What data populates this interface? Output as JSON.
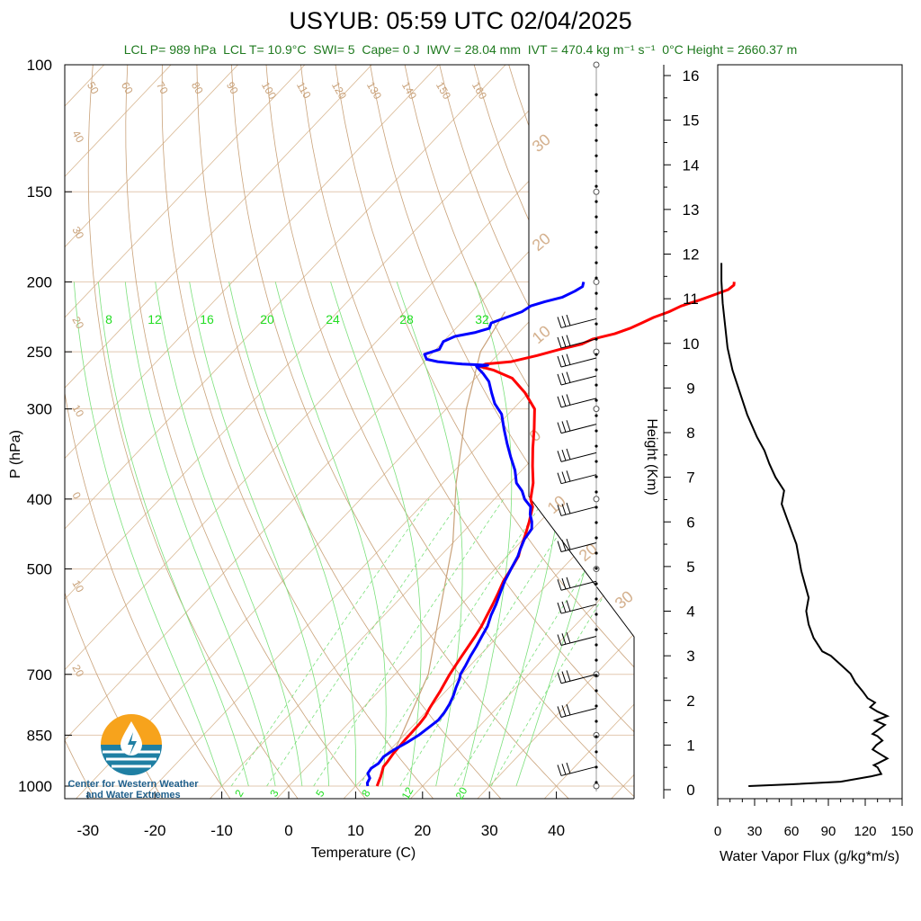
{
  "title": "USYUB: 05:59 UTC 02/04/2025",
  "subtitle": "LCL P= 989 hPa  LCL T= 10.9°C  SWI= 5  Cape= 0 J  IWV = 28.04 mm  IVT = 470.4 kg m⁻¹ s⁻¹  0°C Height = 2660.37 m",
  "logo": {
    "text_line1": "Center for Western Weather",
    "text_line2": "and Water Extremes"
  },
  "colors": {
    "temperature": "#ff0000",
    "dewpoint": "#0000ff",
    "dry_adiabat": "#c9a27a",
    "moist_adiabat": "#7be07b",
    "mixing_ratio": "#7be07b",
    "flux": "#000000"
  },
  "chart_data": [
    {
      "type": "line",
      "name": "skew-t",
      "xlabel": "Temperature (C)",
      "ylabel": "P (hPa)",
      "x_ticks": [
        -30,
        -20,
        -10,
        0,
        10,
        20,
        30,
        40
      ],
      "y_ticks": [
        100,
        150,
        200,
        250,
        300,
        400,
        500,
        700,
        850,
        1000
      ],
      "ylim": [
        1000,
        100
      ],
      "y_scale": "log",
      "dry_adiabat_labels": [
        "50",
        "60",
        "70",
        "80",
        "90",
        "100",
        "110",
        "120",
        "130",
        "140",
        "150",
        "160"
      ],
      "isotherm_labels": [
        "40",
        "30",
        "20",
        "10",
        "0",
        "10",
        "20"
      ],
      "isotherm_labels_right": [
        "30",
        "20",
        "10",
        "0",
        "10",
        "20",
        "30"
      ],
      "moist_labels_upper": [
        "8",
        "12",
        "16",
        "20",
        "24",
        "28",
        "32"
      ],
      "mixing_labels": [
        "2",
        "3",
        "5",
        "8",
        "12",
        "20"
      ],
      "series": [
        {
          "key": "temperature",
          "points": [
            [
              13.2,
              1000
            ],
            [
              12.8,
              985
            ],
            [
              12.4,
              970
            ],
            [
              11.9,
              955
            ],
            [
              11.4,
              940
            ],
            [
              11.3,
              925
            ],
            [
              11.0,
              900
            ],
            [
              10.9,
              880
            ],
            [
              10.8,
              860
            ],
            [
              10.8,
              850
            ],
            [
              10.7,
              820
            ],
            [
              10.5,
              800
            ],
            [
              10.0,
              780
            ],
            [
              9.6,
              760
            ],
            [
              9.2,
              740
            ],
            [
              8.7,
              720
            ],
            [
              8.2,
              700
            ],
            [
              7.8,
              680
            ],
            [
              7.4,
              660
            ],
            [
              7.0,
              640
            ],
            [
              6.6,
              620
            ],
            [
              6.1,
              600
            ],
            [
              5.4,
              580
            ],
            [
              4.7,
              560
            ],
            [
              3.9,
              540
            ],
            [
              3.0,
              520
            ],
            [
              2.4,
              500
            ],
            [
              1.7,
              480
            ],
            [
              1.0,
              470
            ],
            [
              -0.2,
              450
            ],
            [
              -1.6,
              430
            ],
            [
              -3.2,
              410
            ],
            [
              -4.6,
              400
            ],
            [
              -6.5,
              380
            ],
            [
              -9.0,
              360
            ],
            [
              -11.5,
              340
            ],
            [
              -14.0,
              320
            ],
            [
              -16.8,
              300
            ],
            [
              -20.5,
              285
            ],
            [
              -24.5,
              272
            ],
            [
              -28.5,
              265
            ],
            [
              -31.0,
              262
            ],
            [
              -30.5,
              260
            ],
            [
              -27.0,
              258
            ],
            [
              -24.0,
              253
            ],
            [
              -21.5,
              248
            ],
            [
              -19.0,
              244
            ],
            [
              -18.0,
              240
            ],
            [
              -15.5,
              236
            ],
            [
              -14.0,
              232
            ],
            [
              -13.0,
              228
            ],
            [
              -12.0,
              224
            ],
            [
              -10.5,
              220
            ],
            [
              -9.5,
              216
            ],
            [
              -7.6,
              212
            ],
            [
              -6.0,
              208
            ],
            [
              -4.8,
              205
            ],
            [
              -4.6,
              202
            ],
            [
              -5.0,
              200
            ]
          ]
        },
        {
          "key": "dewpoint",
          "points": [
            [
              11.8,
              1000
            ],
            [
              11.3,
              990
            ],
            [
              11.0,
              975
            ],
            [
              10.0,
              960
            ],
            [
              9.8,
              945
            ],
            [
              10.2,
              930
            ],
            [
              10.0,
              910
            ],
            [
              10.6,
              890
            ],
            [
              11.5,
              870
            ],
            [
              12.2,
              850
            ],
            [
              12.6,
              830
            ],
            [
              13.0,
              810
            ],
            [
              12.8,
              790
            ],
            [
              12.4,
              770
            ],
            [
              11.8,
              750
            ],
            [
              11.0,
              730
            ],
            [
              10.3,
              710
            ],
            [
              9.8,
              700
            ],
            [
              9.3,
              680
            ],
            [
              8.7,
              660
            ],
            [
              8.2,
              640
            ],
            [
              7.6,
              620
            ],
            [
              7.0,
              600
            ],
            [
              6.0,
              580
            ],
            [
              5.2,
              560
            ],
            [
              4.2,
              540
            ],
            [
              3.2,
              520
            ],
            [
              2.4,
              500
            ],
            [
              1.6,
              480
            ],
            [
              1.0,
              470
            ],
            [
              0.2,
              455
            ],
            [
              -0.2,
              440
            ],
            [
              -1.2,
              430
            ],
            [
              -2.5,
              420
            ],
            [
              -3.5,
              410
            ],
            [
              -5.5,
              400
            ],
            [
              -7.0,
              390
            ],
            [
              -9.0,
              380
            ],
            [
              -11.0,
              365
            ],
            [
              -13.5,
              350
            ],
            [
              -16.0,
              335
            ],
            [
              -18.5,
              320
            ],
            [
              -21.0,
              305
            ],
            [
              -23.5,
              295
            ],
            [
              -25.5,
              285
            ],
            [
              -27.5,
              275
            ],
            [
              -29.5,
              268
            ],
            [
              -31.5,
              262
            ],
            [
              -30.0,
              261
            ],
            [
              -34.0,
              260
            ],
            [
              -38.0,
              258
            ],
            [
              -40.0,
              256
            ],
            [
              -41.0,
              252
            ],
            [
              -39.5,
              248
            ],
            [
              -40.0,
              242
            ],
            [
              -39.0,
              238
            ],
            [
              -36.5,
              235
            ],
            [
              -35.0,
              232
            ],
            [
              -35.5,
              228
            ],
            [
              -34.0,
              224
            ],
            [
              -32.5,
              220
            ],
            [
              -32.0,
              216
            ],
            [
              -30.5,
              213
            ],
            [
              -28.5,
              210
            ],
            [
              -27.5,
              206
            ],
            [
              -27.0,
              203
            ],
            [
              -27.5,
              200
            ]
          ]
        },
        {
          "key": "environment_lapse",
          "points": [
            [
              11.0,
              900
            ],
            [
              5.0,
              700
            ],
            [
              -3.0,
              560
            ],
            [
              -10.0,
              460
            ],
            [
              -18.0,
              380
            ],
            [
              -27.0,
              300
            ],
            [
              -33.0,
              250
            ],
            [
              -35.0,
              220
            ]
          ]
        }
      ]
    },
    {
      "type": "line",
      "name": "water-vapor-flux",
      "xlabel": "Water Vapor Flux (g/kg*m/s)",
      "ylabel": "Height (Km)",
      "xlim": [
        0,
        150
      ],
      "ylim": [
        0,
        16
      ],
      "x_ticks": [
        0,
        30,
        60,
        90,
        120,
        150
      ],
      "y_ticks": [
        0,
        1,
        2,
        3,
        4,
        5,
        6,
        7,
        8,
        9,
        10,
        11,
        12,
        13,
        14,
        15,
        16
      ],
      "series": [
        {
          "key": "flux",
          "points": [
            [
              25,
              0.08
            ],
            [
              60,
              0.12
            ],
            [
              100,
              0.18
            ],
            [
              125,
              0.3
            ],
            [
              133,
              0.35
            ],
            [
              130,
              0.5
            ],
            [
              127,
              0.55
            ],
            [
              131,
              0.6
            ],
            [
              138,
              0.7
            ],
            [
              132,
              0.8
            ],
            [
              126,
              0.9
            ],
            [
              129,
              1.0
            ],
            [
              134,
              1.1
            ],
            [
              130,
              1.2
            ],
            [
              126,
              1.25
            ],
            [
              131,
              1.35
            ],
            [
              136,
              1.45
            ],
            [
              128,
              1.55
            ],
            [
              138,
              1.65
            ],
            [
              130,
              1.75
            ],
            [
              124,
              1.85
            ],
            [
              128,
              1.95
            ],
            [
              122,
              2.05
            ],
            [
              118,
              2.2
            ],
            [
              112,
              2.4
            ],
            [
              108,
              2.6
            ],
            [
              100,
              2.8
            ],
            [
              92,
              3.0
            ],
            [
              85,
              3.1
            ],
            [
              78,
              3.4
            ],
            [
              74,
              3.7
            ],
            [
              72,
              4.0
            ],
            [
              74,
              4.3
            ],
            [
              71,
              4.6
            ],
            [
              68,
              4.9
            ],
            [
              66,
              5.2
            ],
            [
              64,
              5.5
            ],
            [
              60,
              5.8
            ],
            [
              56,
              6.1
            ],
            [
              52,
              6.4
            ],
            [
              54,
              6.7
            ],
            [
              47,
              7.0
            ],
            [
              42,
              7.3
            ],
            [
              38,
              7.6
            ],
            [
              32,
              7.9
            ],
            [
              24,
              8.4
            ],
            [
              18,
              8.9
            ],
            [
              12,
              9.4
            ],
            [
              8,
              9.9
            ],
            [
              6,
              10.4
            ],
            [
              4,
              10.9
            ],
            [
              3,
              11.4
            ],
            [
              3,
              11.8
            ]
          ]
        }
      ]
    }
  ]
}
